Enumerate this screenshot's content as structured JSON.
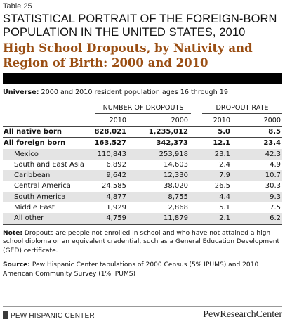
{
  "table_label": "Table 25",
  "super_title": "STATISTICAL PORTRAIT OF THE FOREIGN-BORN POPULATION IN THE UNITED STATES, 2010",
  "title": "High School Dropouts, by Nativity and Region of Birth: 2000 and 2010",
  "universe": {
    "label": "Universe:",
    "text": " 2000 and 2010 resident population ages 16 through 19"
  },
  "headers": {
    "group1": "NUMBER OF DROPOUTS",
    "group2": "DROPOUT RATE",
    "years": [
      "2010",
      "2000",
      "2010",
      "2000"
    ]
  },
  "rows": [
    {
      "label": "All native born",
      "v": [
        "828,021",
        "1,235,012",
        "5.0",
        "8.5"
      ]
    },
    {
      "label": "All foreign born",
      "v": [
        "163,527",
        "342,373",
        "12.1",
        "23.4"
      ]
    },
    {
      "label": "Mexico",
      "v": [
        "110,843",
        "253,918",
        "23.1",
        "42.3"
      ]
    },
    {
      "label": "South and East Asia",
      "v": [
        "6,892",
        "14,603",
        "2.4",
        "4.9"
      ]
    },
    {
      "label": "Caribbean",
      "v": [
        "9,642",
        "12,330",
        "7.9",
        "10.7"
      ]
    },
    {
      "label": "Central America",
      "v": [
        "24,585",
        "38,020",
        "26.5",
        "30.3"
      ]
    },
    {
      "label": "South America",
      "v": [
        "4,877",
        "8,755",
        "4.4",
        "9.3"
      ]
    },
    {
      "label": "Middle East",
      "v": [
        "1,929",
        "2,868",
        "5.1",
        "7.5"
      ]
    },
    {
      "label": "All other",
      "v": [
        "4,759",
        "11,879",
        "2.1",
        "6.2"
      ]
    }
  ],
  "note": {
    "label": "Note:",
    "text": " Dropouts are people not enrolled in school and who have not attained a high school diploma or an equivalent credential, such as a General Education Development (GED) certificate."
  },
  "source": {
    "label": "Source:",
    "text": " Pew Hispanic Center tabulations of 2000 Census (5% IPUMS) and 2010 American Community Survey (1% IPUMS)"
  },
  "footer": {
    "left": "PEW HISPANIC CENTER",
    "right": "PewResearchCenter"
  }
}
